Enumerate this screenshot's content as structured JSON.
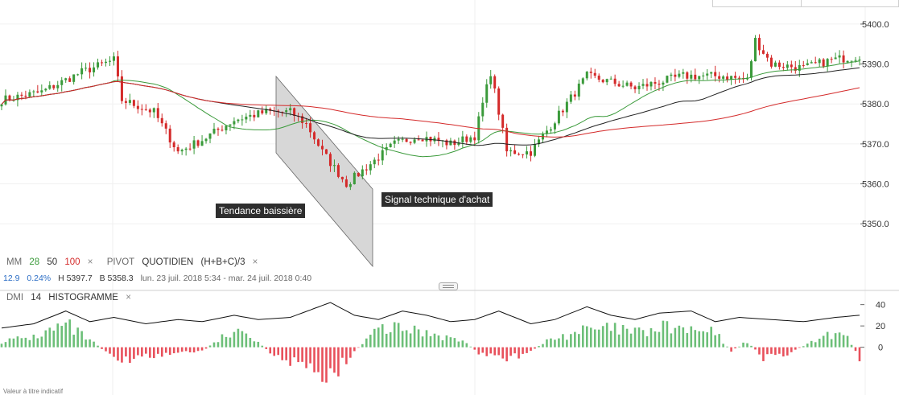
{
  "chart_data": [
    {
      "type": "candlestick",
      "ylim": [
        5345,
        5402
      ],
      "y_ticks": [
        "5400.0",
        "5390.0",
        "5380.0",
        "5370.0",
        "5360.0",
        "5350.0"
      ],
      "y_tick_values": [
        5400,
        5390,
        5380,
        5370,
        5360,
        5350
      ],
      "close_anchors": [
        [
          0,
          5381
        ],
        [
          10,
          5383
        ],
        [
          20,
          5388
        ],
        [
          28,
          5391
        ],
        [
          30,
          5381
        ],
        [
          38,
          5378
        ],
        [
          44,
          5368
        ],
        [
          50,
          5371
        ],
        [
          58,
          5376
        ],
        [
          66,
          5378
        ],
        [
          72,
          5378
        ],
        [
          76,
          5375
        ],
        [
          80,
          5368
        ],
        [
          86,
          5360
        ],
        [
          92,
          5365
        ],
        [
          98,
          5370
        ],
        [
          104,
          5372
        ],
        [
          112,
          5370
        ],
        [
          118,
          5372
        ],
        [
          122,
          5388
        ],
        [
          126,
          5368
        ],
        [
          132,
          5368
        ],
        [
          138,
          5376
        ],
        [
          146,
          5387
        ],
        [
          158,
          5384
        ],
        [
          170,
          5387
        ],
        [
          180,
          5387
        ],
        [
          186,
          5386
        ],
        [
          188,
          5396
        ],
        [
          192,
          5390
        ],
        [
          200,
          5389
        ],
        [
          207,
          5391
        ],
        [
          214,
          5392
        ]
      ],
      "indicators": [
        {
          "name": "MM",
          "period": "28",
          "color": "#3a9a3a"
        },
        {
          "name": "MM",
          "period": "50",
          "color": "#222222"
        },
        {
          "name": "MM",
          "period": "100",
          "color": "#d42a2a"
        }
      ],
      "annotations": [
        "Tendance baissière",
        "Signal technique d'achat"
      ]
    },
    {
      "type": "histogram",
      "name": "DMI 14 HISTOGRAMME",
      "ylim": [
        -35,
        42
      ],
      "y_ticks": [
        "40",
        "20",
        "0"
      ],
      "y_tick_values": [
        40,
        20,
        0
      ],
      "hist_anchors": [
        [
          0,
          6
        ],
        [
          8,
          10
        ],
        [
          16,
          22
        ],
        [
          20,
          12
        ],
        [
          26,
          -4
        ],
        [
          30,
          -12
        ],
        [
          36,
          -10
        ],
        [
          42,
          -6
        ],
        [
          50,
          -4
        ],
        [
          56,
          12
        ],
        [
          62,
          14
        ],
        [
          68,
          -10
        ],
        [
          74,
          -18
        ],
        [
          80,
          -26
        ],
        [
          84,
          -22
        ],
        [
          88,
          -4
        ],
        [
          94,
          18
        ],
        [
          100,
          18
        ],
        [
          108,
          14
        ],
        [
          116,
          4
        ],
        [
          120,
          -8
        ],
        [
          126,
          -12
        ],
        [
          132,
          -4
        ],
        [
          136,
          6
        ],
        [
          144,
          16
        ],
        [
          152,
          18
        ],
        [
          160,
          14
        ],
        [
          166,
          20
        ],
        [
          172,
          16
        ],
        [
          178,
          14
        ],
        [
          182,
          -4
        ],
        [
          186,
          6
        ],
        [
          190,
          -10
        ],
        [
          196,
          -6
        ],
        [
          204,
          8
        ],
        [
          210,
          16
        ],
        [
          214,
          -10
        ]
      ],
      "line_anchors": [
        [
          0,
          18
        ],
        [
          8,
          22
        ],
        [
          16,
          34
        ],
        [
          22,
          24
        ],
        [
          28,
          28
        ],
        [
          36,
          22
        ],
        [
          44,
          26
        ],
        [
          50,
          24
        ],
        [
          58,
          30
        ],
        [
          64,
          26
        ],
        [
          72,
          28
        ],
        [
          82,
          42
        ],
        [
          88,
          30
        ],
        [
          94,
          26
        ],
        [
          100,
          34
        ],
        [
          106,
          30
        ],
        [
          112,
          24
        ],
        [
          118,
          26
        ],
        [
          124,
          34
        ],
        [
          132,
          22
        ],
        [
          138,
          26
        ],
        [
          146,
          38
        ],
        [
          152,
          30
        ],
        [
          158,
          26
        ],
        [
          164,
          32
        ],
        [
          172,
          34
        ],
        [
          178,
          24
        ],
        [
          184,
          28
        ],
        [
          192,
          26
        ],
        [
          200,
          24
        ],
        [
          208,
          28
        ],
        [
          214,
          30
        ]
      ]
    }
  ],
  "legend": {
    "mm_label": "MM",
    "mm_p1": "28",
    "mm_p2": "50",
    "mm_p3": "100",
    "pivot_label": "PIVOT",
    "pivot_period": "QUOTIDIEN",
    "pivot_formula": "(H+B+C)/3",
    "close": "×"
  },
  "info": {
    "last": "12.9",
    "change": "0.24%",
    "high": "H 5397.7",
    "low": "B 5358.3",
    "range": "lun. 23 juil. 2018 5:34 - mar. 24 juil. 2018 0:40"
  },
  "dmi": {
    "label": "DMI",
    "period": "14",
    "mode": "HISTOGRAMME",
    "close": "×"
  },
  "annotations": {
    "downtrend": "Tendance baissière",
    "buy_signal": "Signal technique d'achat"
  },
  "footnote": "Valeur à titre indicatif",
  "colors": {
    "up": "#3a9a3a",
    "down": "#d42a2a",
    "hist_up": "#6cbf78",
    "hist_down": "#e8505b",
    "channel": "#d5d5d5"
  }
}
